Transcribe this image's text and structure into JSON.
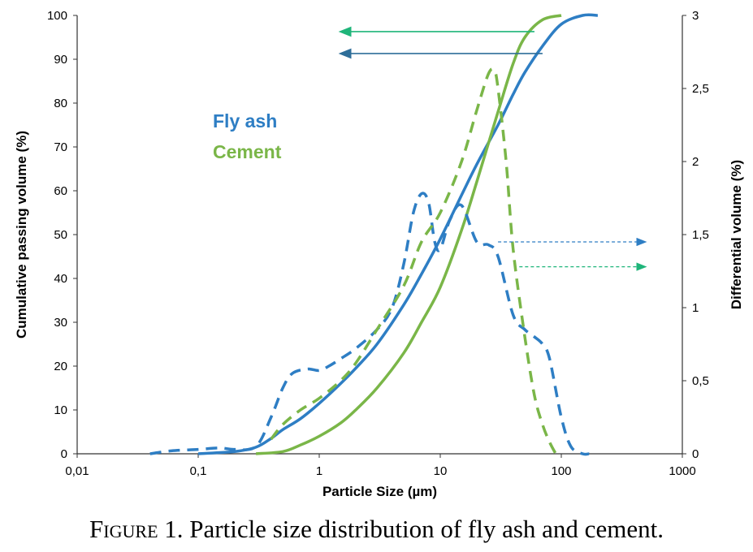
{
  "caption": {
    "figure_label": "Figure",
    "number": "1.",
    "text": "Particle size distribution of fly ash and cement."
  },
  "chart_data": {
    "type": "line",
    "xlabel": "Particle Size (µm)",
    "ylabel_left": "Cumulative passing volume (%)",
    "ylabel_right": "Differential volume (%)",
    "x_scale": "log",
    "xlim": [
      0.01,
      1000
    ],
    "ylim_left": [
      0,
      100
    ],
    "ylim_right": [
      0,
      3
    ],
    "x_ticks": [
      0.01,
      0.1,
      1,
      10,
      100,
      1000
    ],
    "x_tick_labels": [
      "0,01",
      "0,1",
      "1",
      "10",
      "100",
      "1000"
    ],
    "y_left_ticks": [
      0,
      10,
      20,
      30,
      40,
      50,
      60,
      70,
      80,
      90,
      100
    ],
    "y_left_tick_labels": [
      "0",
      "10",
      "20",
      "30",
      "40",
      "50",
      "60",
      "70",
      "80",
      "90",
      "100"
    ],
    "y_right_ticks": [
      0,
      0.5,
      1,
      1.5,
      2,
      2.5,
      3
    ],
    "y_right_tick_labels": [
      "0",
      "0,5",
      "1",
      "1,5",
      "2",
      "2,5",
      "3"
    ],
    "grid": false,
    "legend": [
      {
        "name": "Fly ash",
        "color": "#2e7ec4"
      },
      {
        "name": "Cement",
        "color": "#7ab648"
      }
    ],
    "series": [
      {
        "name": "Fly ash",
        "kind": "cumulative",
        "axis": "left",
        "style": "solid",
        "color": "#2e7ec4",
        "x": [
          0.1,
          0.2,
          0.3,
          0.4,
          0.5,
          0.7,
          1,
          1.5,
          2,
          3,
          5,
          7,
          10,
          15,
          20,
          30,
          40,
          50,
          70,
          100,
          150,
          200
        ],
        "y": [
          0,
          0.5,
          1.5,
          3.5,
          5.5,
          8,
          11.5,
          16,
          19.5,
          25,
          34,
          41,
          49,
          59,
          66,
          75,
          82,
          87,
          93,
          98,
          100,
          100
        ]
      },
      {
        "name": "Cement",
        "kind": "cumulative",
        "axis": "left",
        "style": "solid",
        "color": "#7ab648",
        "x": [
          0.3,
          0.5,
          0.7,
          1,
          1.5,
          2,
          3,
          5,
          7,
          10,
          15,
          20,
          30,
          40,
          50,
          70,
          100
        ],
        "y": [
          0,
          0.5,
          2,
          4,
          7,
          10,
          15,
          23,
          30,
          38,
          51,
          62,
          78,
          89,
          95,
          99,
          100
        ]
      },
      {
        "name": "Fly ash",
        "kind": "differential",
        "axis": "right",
        "style": "dashed",
        "color": "#2e7ec4",
        "x": [
          0.04,
          0.06,
          0.1,
          0.15,
          0.2,
          0.3,
          0.4,
          0.5,
          0.6,
          0.8,
          1,
          1.2,
          1.5,
          2,
          3,
          4,
          5,
          6,
          7,
          8,
          9,
          10,
          12,
          15,
          20,
          25,
          30,
          40,
          50,
          60,
          70,
          80,
          100,
          120,
          150,
          170
        ],
        "y": [
          0,
          0.02,
          0.03,
          0.04,
          0.03,
          0.05,
          0.25,
          0.45,
          0.55,
          0.58,
          0.57,
          0.6,
          0.65,
          0.72,
          0.85,
          1.0,
          1.3,
          1.65,
          1.78,
          1.72,
          1.45,
          1.4,
          1.6,
          1.7,
          1.45,
          1.43,
          1.35,
          0.95,
          0.85,
          0.8,
          0.75,
          0.65,
          0.25,
          0.05,
          0,
          0
        ]
      },
      {
        "name": "Cement",
        "kind": "differential",
        "axis": "right",
        "style": "dashed",
        "color": "#7ab648",
        "x": [
          0.4,
          0.5,
          0.7,
          1,
          1.5,
          2,
          3,
          5,
          7,
          10,
          15,
          20,
          25,
          28,
          30,
          35,
          40,
          50,
          60,
          70,
          80,
          90
        ],
        "y": [
          0.1,
          0.2,
          0.3,
          0.38,
          0.5,
          0.62,
          0.85,
          1.15,
          1.45,
          1.65,
          2.0,
          2.35,
          2.6,
          2.62,
          2.5,
          2.0,
          1.4,
          0.8,
          0.4,
          0.2,
          0.08,
          0
        ]
      }
    ],
    "annotations": [
      {
        "type": "arrow",
        "direction": "left",
        "color": "#1fb57a",
        "style": "solid",
        "x_from": 60,
        "x_to": 1.8,
        "y_left": 96.3
      },
      {
        "type": "arrow",
        "direction": "left",
        "color": "#2e6e99",
        "style": "solid",
        "x_from": 70,
        "x_to": 1.8,
        "y_left": 91.3
      },
      {
        "type": "arrow",
        "direction": "right",
        "color": "#2e7ec4",
        "style": "dotted",
        "x_from": 30,
        "x_to": 500,
        "y_right": 1.45
      },
      {
        "type": "arrow",
        "direction": "right",
        "color": "#1fb57a",
        "style": "dotted",
        "x_from": 45,
        "x_to": 500,
        "y_right": 1.28
      }
    ]
  }
}
